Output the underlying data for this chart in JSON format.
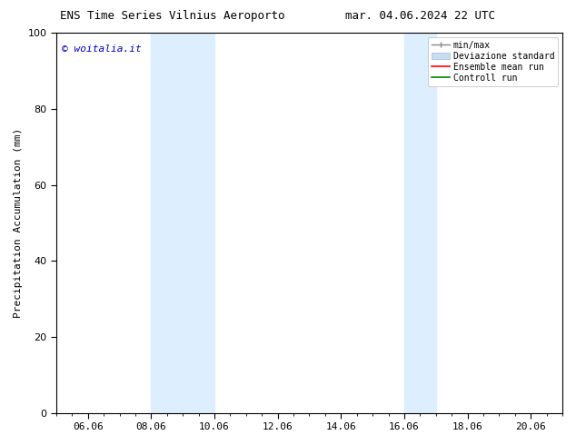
{
  "title_left": "ENS Time Series Vilnius Aeroporto",
  "title_right": "mar. 04.06.2024 22 UTC",
  "ylabel": "Precipitation Accumulation (mm)",
  "ylim": [
    0,
    100
  ],
  "yticks": [
    0,
    20,
    40,
    60,
    80,
    100
  ],
  "xlim": [
    5.0,
    21.0
  ],
  "xtick_labels": [
    "06.06",
    "08.06",
    "10.06",
    "12.06",
    "14.06",
    "16.06",
    "18.06",
    "20.06"
  ],
  "xtick_positions": [
    6.0,
    8.0,
    10.0,
    12.0,
    14.0,
    16.0,
    18.0,
    20.0
  ],
  "shaded_bands": [
    {
      "x_start": 8.0,
      "x_end": 10.0
    },
    {
      "x_start": 16.0,
      "x_end": 17.0
    }
  ],
  "band_color": "#ddeeff",
  "background_color": "#ffffff",
  "watermark_text": "© woitalia.it",
  "watermark_color": "#0000cc",
  "title_fontsize": 9,
  "legend_fontsize": 7,
  "axis_label_fontsize": 8,
  "tick_fontsize": 8,
  "watermark_fontsize": 8,
  "legend_labels": [
    "min/max",
    "Deviazione standard",
    "Ensemble mean run",
    "Controll run"
  ],
  "legend_colors": [
    "#888888",
    "#c8ddf0",
    "red",
    "green"
  ],
  "minor_xtick_step": 0.5
}
